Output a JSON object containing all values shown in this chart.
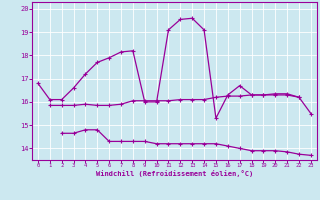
{
  "xlabel": "Windchill (Refroidissement éolien,°C)",
  "x": [
    0,
    1,
    2,
    3,
    4,
    5,
    6,
    7,
    8,
    9,
    10,
    11,
    12,
    13,
    14,
    15,
    16,
    17,
    18,
    19,
    20,
    21,
    22,
    23
  ],
  "upper": [
    16.8,
    16.1,
    16.1,
    16.6,
    17.2,
    17.7,
    17.9,
    18.15,
    18.2,
    16.0,
    16.0,
    19.1,
    19.55,
    19.6,
    19.1,
    15.3,
    16.3,
    16.7,
    16.3,
    16.3,
    16.35,
    16.35,
    16.2,
    15.5
  ],
  "middle": [
    null,
    15.85,
    15.85,
    15.85,
    15.9,
    15.85,
    15.85,
    15.9,
    16.05,
    16.05,
    16.05,
    16.05,
    16.1,
    16.1,
    16.1,
    16.2,
    16.25,
    16.25,
    16.3,
    16.3,
    16.3,
    16.3,
    16.2,
    null
  ],
  "lower": [
    null,
    null,
    14.65,
    14.65,
    14.8,
    14.8,
    14.3,
    14.3,
    14.3,
    14.3,
    14.2,
    14.2,
    14.2,
    14.2,
    14.2,
    14.2,
    14.1,
    14.0,
    13.9,
    13.9,
    13.9,
    13.85,
    13.75,
    13.7
  ],
  "line_color": "#990099",
  "bg_color": "#cce8f0",
  "grid_color": "#ffffff",
  "ylim": [
    13.5,
    20.3
  ],
  "yticks": [
    14,
    15,
    16,
    17,
    18,
    19,
    20
  ],
  "xticks": [
    0,
    1,
    2,
    3,
    4,
    5,
    6,
    7,
    8,
    9,
    10,
    11,
    12,
    13,
    14,
    15,
    16,
    17,
    18,
    19,
    20,
    21,
    22,
    23
  ]
}
